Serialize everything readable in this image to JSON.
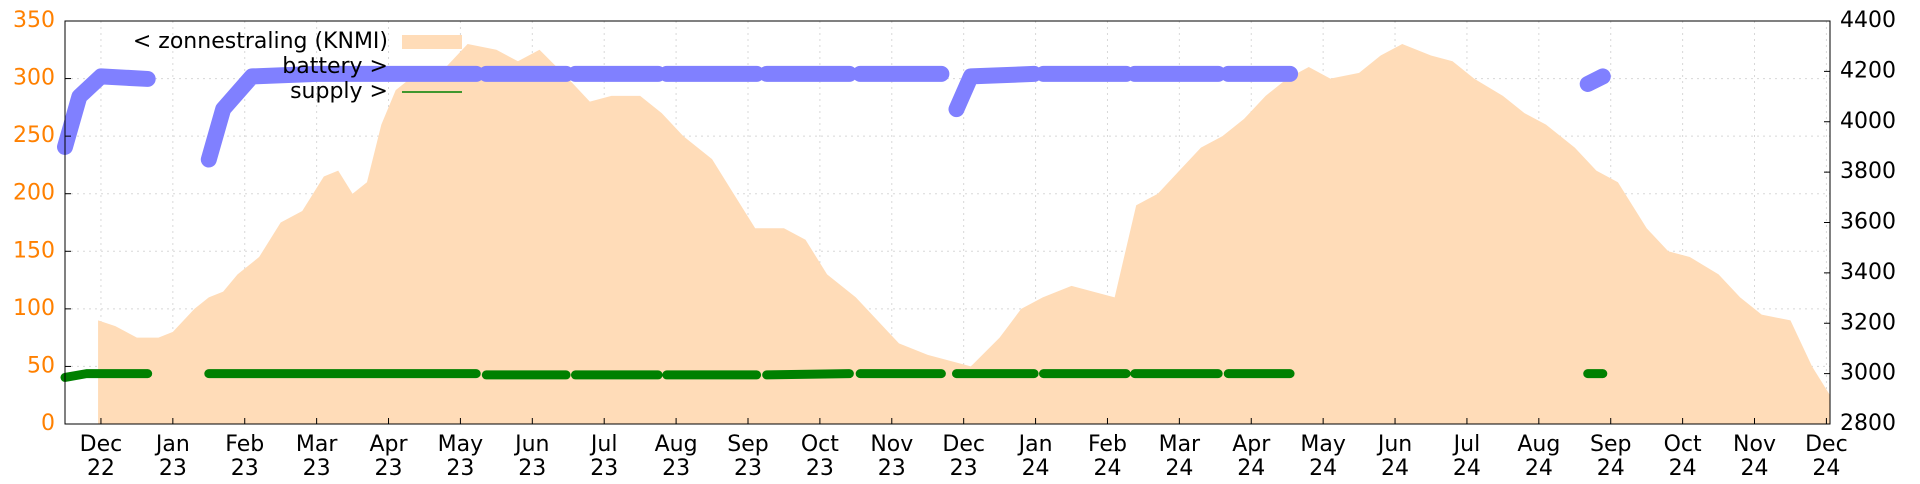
{
  "chart_data": {
    "type": "line",
    "grid": true,
    "xlim": [
      0,
      24.55
    ],
    "ylim": [
      0,
      350
    ],
    "yticks": [
      0,
      50,
      100,
      150,
      200,
      250,
      300,
      350
    ],
    "y2lim": [
      2800,
      4400
    ],
    "y2ticks": [
      2800,
      3000,
      3200,
      3400,
      3600,
      3800,
      4000,
      4200,
      4400
    ],
    "xticks": [
      {
        "value": 0.5,
        "label": "Dec"
      },
      {
        "value": 1.5,
        "label": "Jan"
      },
      {
        "value": 2.5,
        "label": "Feb"
      },
      {
        "value": 3.5,
        "label": "Mar"
      },
      {
        "value": 4.5,
        "label": "Apr"
      },
      {
        "value": 5.5,
        "label": "May"
      },
      {
        "value": 6.5,
        "label": "Jun"
      },
      {
        "value": 7.5,
        "label": "Jul"
      },
      {
        "value": 8.5,
        "label": "Aug"
      },
      {
        "value": 9.5,
        "label": "Sep"
      },
      {
        "value": 10.5,
        "label": "Oct"
      },
      {
        "value": 11.5,
        "label": "Nov"
      },
      {
        "value": 12.5,
        "label": "Dec"
      },
      {
        "value": 13.5,
        "label": "Jan"
      },
      {
        "value": 14.5,
        "label": "Feb"
      },
      {
        "value": 15.5,
        "label": "Mar"
      },
      {
        "value": 16.5,
        "label": "Apr"
      },
      {
        "value": 17.5,
        "label": "May"
      },
      {
        "value": 18.5,
        "label": "Jun"
      },
      {
        "value": 19.5,
        "label": "Jul"
      },
      {
        "value": 20.5,
        "label": "Aug"
      },
      {
        "value": 21.5,
        "label": "Sep"
      },
      {
        "value": 22.5,
        "label": "Oct"
      },
      {
        "value": 23.5,
        "label": "Nov"
      },
      {
        "value": 24.5,
        "label": "Dec"
      }
    ],
    "xtick_years": [
      {
        "value": 0.5,
        "label": "22"
      },
      {
        "value": 1.5,
        "label": "23"
      },
      {
        "value": 2.5,
        "label": "23"
      },
      {
        "value": 3.5,
        "label": "23"
      },
      {
        "value": 4.5,
        "label": "23"
      },
      {
        "value": 5.5,
        "label": "23"
      },
      {
        "value": 6.5,
        "label": "23"
      },
      {
        "value": 7.5,
        "label": "23"
      },
      {
        "value": 8.5,
        "label": "23"
      },
      {
        "value": 9.5,
        "label": "23"
      },
      {
        "value": 10.5,
        "label": "23"
      },
      {
        "value": 11.5,
        "label": "23"
      },
      {
        "value": 12.5,
        "label": "23"
      },
      {
        "value": 13.5,
        "label": "24"
      },
      {
        "value": 14.5,
        "label": "24"
      },
      {
        "value": 15.5,
        "label": "24"
      },
      {
        "value": 16.5,
        "label": "24"
      },
      {
        "value": 17.5,
        "label": "24"
      },
      {
        "value": 18.5,
        "label": "24"
      },
      {
        "value": 19.5,
        "label": "24"
      },
      {
        "value": 20.5,
        "label": "24"
      },
      {
        "value": 21.5,
        "label": "24"
      },
      {
        "value": 22.5,
        "label": "24"
      },
      {
        "value": 23.5,
        "label": "24"
      },
      {
        "value": 24.5,
        "label": "24"
      }
    ],
    "x": [
      0.46,
      0.7,
      1.0,
      1.3,
      1.5,
      1.8,
      2.0,
      2.2,
      2.4,
      2.7,
      3.0,
      3.3,
      3.6,
      3.8,
      4.0,
      4.2,
      4.4,
      4.6,
      4.8,
      5.0,
      5.3,
      5.6,
      6.0,
      6.3,
      6.6,
      7.0,
      7.3,
      7.6,
      8.0,
      8.3,
      8.6,
      9.0,
      9.3,
      9.6,
      10.0,
      10.3,
      10.6,
      11.0,
      11.3,
      11.6,
      12.0,
      12.3,
      12.6,
      13.0,
      13.3,
      13.6,
      14.0,
      14.3,
      14.6,
      14.9,
      15.2,
      15.5,
      15.8,
      16.1,
      16.4,
      16.7,
      17.0,
      17.3,
      17.6,
      18.0,
      18.3,
      18.6,
      19.0,
      19.3,
      19.6,
      20.0,
      20.3,
      20.6,
      21.0,
      21.3,
      21.6,
      22.0,
      22.3,
      22.6,
      23.0,
      23.3,
      23.6,
      24.0,
      24.3,
      24.55
    ],
    "series": [
      {
        "name": "< zonnestraling (KNMI)",
        "color": "#ffdcb8",
        "type": "area",
        "values": [
          90,
          85,
          75,
          75,
          80,
          100,
          110,
          115,
          130,
          145,
          175,
          185,
          215,
          220,
          200,
          210,
          260,
          290,
          300,
          305,
          310,
          330,
          325,
          315,
          325,
          300,
          280,
          285,
          285,
          270,
          250,
          230,
          200,
          170,
          170,
          160,
          130,
          110,
          90,
          70,
          60,
          55,
          50,
          75,
          100,
          110,
          120,
          115,
          110,
          190,
          200,
          220,
          240,
          250,
          265,
          285,
          300,
          310,
          300,
          305,
          320,
          330,
          320,
          315,
          300,
          285,
          270,
          260,
          240,
          220,
          210,
          170,
          150,
          145,
          130,
          110,
          95,
          90,
          50,
          25
        ]
      },
      {
        "name": "battery >",
        "color": "#8080ff",
        "axis": "y2",
        "x": [
          0,
          0.2,
          0.5,
          1.15,
          1.6,
          2.0,
          2.2,
          2.6,
          3.5,
          5.72,
          5.79,
          5.86,
          6.97,
          7.03,
          7.1,
          8.25,
          8.31,
          8.37,
          9.62,
          9.69,
          9.76,
          10.91,
          10.98,
          11.06,
          12.19,
          12.3,
          12.4,
          12.6,
          13.48,
          13.55,
          13.61,
          14.76,
          14.82,
          14.88,
          16.04,
          16.11,
          16.18,
          17.04,
          19.0,
          21.18,
          21.39
        ],
        "values": [
          3900,
          4100,
          4180,
          4170,
          null,
          3850,
          4050,
          4180,
          4190,
          4190,
          null,
          4190,
          4190,
          null,
          4190,
          4190,
          null,
          4190,
          4190,
          null,
          4190,
          4190,
          null,
          4190,
          4190,
          null,
          4050,
          4180,
          4190,
          null,
          4190,
          4190,
          null,
          4190,
          4190,
          null,
          4190,
          4190,
          null,
          4150,
          4180
        ]
      },
      {
        "name": "supply >",
        "color": "#008000",
        "axis": "y2",
        "x": [
          0,
          0.3,
          1.15,
          1.6,
          2.0,
          5.72,
          5.79,
          5.86,
          6.97,
          7.03,
          7.1,
          8.25,
          8.31,
          8.37,
          9.62,
          9.69,
          9.76,
          10.91,
          10.98,
          11.06,
          12.19,
          12.3,
          12.4,
          13.48,
          13.55,
          13.61,
          14.76,
          14.82,
          14.88,
          16.04,
          16.11,
          16.18,
          17.04,
          19.0,
          21.18,
          21.39
        ],
        "values": [
          2985,
          3000,
          3000,
          null,
          3000,
          3000,
          null,
          2995,
          2995,
          null,
          2995,
          2995,
          null,
          2995,
          2995,
          null,
          2995,
          3000,
          null,
          3000,
          3000,
          null,
          3000,
          3000,
          null,
          3000,
          3000,
          null,
          3000,
          3000,
          null,
          3000,
          3000,
          null,
          3000,
          3000
        ]
      }
    ]
  }
}
